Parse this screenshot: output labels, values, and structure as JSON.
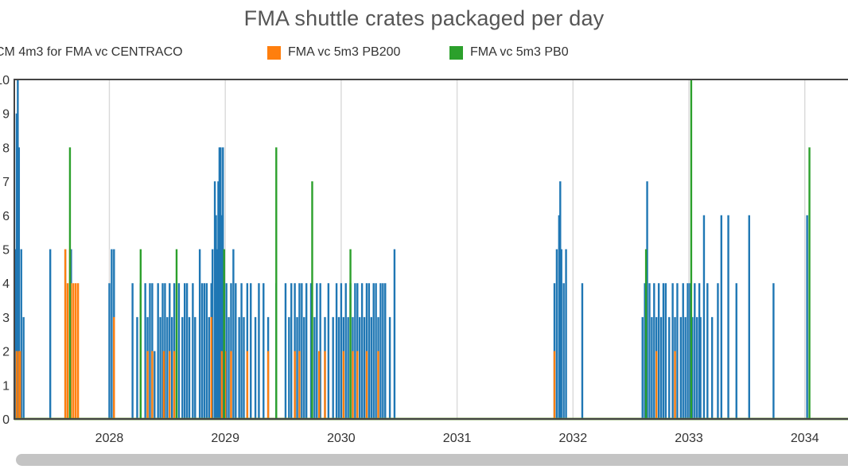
{
  "chart_data": {
    "type": "line",
    "title": "FMA shuttle crates packaged per day",
    "xlabel": "",
    "ylabel": "",
    "xlim": [
      2027.18,
      2034.4
    ],
    "ylim": [
      0,
      10
    ],
    "x_ticks": [
      "2028",
      "2029",
      "2030",
      "2031",
      "2032",
      "2033",
      "2034"
    ],
    "x_tick_values": [
      2028,
      2029,
      2030,
      2031,
      2032,
      2033,
      2034
    ],
    "y_ticks": [
      "0",
      "1",
      "2",
      "3",
      "4",
      "5",
      "6",
      "7",
      "8",
      "9",
      "10"
    ],
    "y_tick_values": [
      0,
      1,
      2,
      3,
      4,
      5,
      6,
      7,
      8,
      9,
      10
    ],
    "grid": true,
    "legend_position": "top",
    "legend": [
      {
        "label": "CM 4m3 for FMA vc CENTRACO",
        "color": "#1f77b4"
      },
      {
        "label": "FMA vc 5m3 PB200",
        "color": "#ff7f0e"
      },
      {
        "label": "FMA vc 5m3 PB0",
        "color": "#2ca02c"
      }
    ],
    "series": [
      {
        "name": "CM 4m3 for FMA vc CENTRACO",
        "color": "#1f77b4",
        "baseline": 0,
        "spikes": [
          {
            "x": 2027.19,
            "y": 5
          },
          {
            "x": 2027.2,
            "y": 9
          },
          {
            "x": 2027.21,
            "y": 10
          },
          {
            "x": 2027.22,
            "y": 8
          },
          {
            "x": 2027.24,
            "y": 5
          },
          {
            "x": 2027.26,
            "y": 3
          },
          {
            "x": 2027.49,
            "y": 5
          },
          {
            "x": 2027.62,
            "y": 5
          },
          {
            "x": 2027.67,
            "y": 5
          },
          {
            "x": 2028.0,
            "y": 4
          },
          {
            "x": 2028.02,
            "y": 5
          },
          {
            "x": 2028.04,
            "y": 5
          },
          {
            "x": 2028.2,
            "y": 4
          },
          {
            "x": 2028.24,
            "y": 3
          },
          {
            "x": 2028.27,
            "y": 4
          },
          {
            "x": 2028.31,
            "y": 4
          },
          {
            "x": 2028.33,
            "y": 3
          },
          {
            "x": 2028.35,
            "y": 4
          },
          {
            "x": 2028.37,
            "y": 4
          },
          {
            "x": 2028.39,
            "y": 2
          },
          {
            "x": 2028.42,
            "y": 4
          },
          {
            "x": 2028.44,
            "y": 3
          },
          {
            "x": 2028.46,
            "y": 4
          },
          {
            "x": 2028.48,
            "y": 4
          },
          {
            "x": 2028.5,
            "y": 3
          },
          {
            "x": 2028.52,
            "y": 4
          },
          {
            "x": 2028.54,
            "y": 3
          },
          {
            "x": 2028.56,
            "y": 4
          },
          {
            "x": 2028.6,
            "y": 4
          },
          {
            "x": 2028.63,
            "y": 3
          },
          {
            "x": 2028.65,
            "y": 4
          },
          {
            "x": 2028.67,
            "y": 4
          },
          {
            "x": 2028.69,
            "y": 3
          },
          {
            "x": 2028.72,
            "y": 4
          },
          {
            "x": 2028.74,
            "y": 3
          },
          {
            "x": 2028.78,
            "y": 5
          },
          {
            "x": 2028.8,
            "y": 4
          },
          {
            "x": 2028.82,
            "y": 4
          },
          {
            "x": 2028.84,
            "y": 4
          },
          {
            "x": 2028.86,
            "y": 3
          },
          {
            "x": 2028.88,
            "y": 4
          },
          {
            "x": 2028.89,
            "y": 5
          },
          {
            "x": 2028.91,
            "y": 7
          },
          {
            "x": 2028.92,
            "y": 6
          },
          {
            "x": 2028.93,
            "y": 5
          },
          {
            "x": 2028.94,
            "y": 7
          },
          {
            "x": 2028.95,
            "y": 8
          },
          {
            "x": 2028.96,
            "y": 8
          },
          {
            "x": 2028.97,
            "y": 6
          },
          {
            "x": 2028.98,
            "y": 8
          },
          {
            "x": 2028.99,
            "y": 5
          },
          {
            "x": 2029.01,
            "y": 4
          },
          {
            "x": 2029.03,
            "y": 3
          },
          {
            "x": 2029.05,
            "y": 4
          },
          {
            "x": 2029.07,
            "y": 5
          },
          {
            "x": 2029.09,
            "y": 4
          },
          {
            "x": 2029.12,
            "y": 3
          },
          {
            "x": 2029.14,
            "y": 4
          },
          {
            "x": 2029.16,
            "y": 3
          },
          {
            "x": 2029.19,
            "y": 4
          },
          {
            "x": 2029.22,
            "y": 4
          },
          {
            "x": 2029.26,
            "y": 3
          },
          {
            "x": 2029.29,
            "y": 4
          },
          {
            "x": 2029.33,
            "y": 4
          },
          {
            "x": 2029.37,
            "y": 3
          },
          {
            "x": 2029.44,
            "y": 4
          },
          {
            "x": 2029.52,
            "y": 4
          },
          {
            "x": 2029.55,
            "y": 3
          },
          {
            "x": 2029.57,
            "y": 4
          },
          {
            "x": 2029.6,
            "y": 4
          },
          {
            "x": 2029.62,
            "y": 3
          },
          {
            "x": 2029.64,
            "y": 4
          },
          {
            "x": 2029.66,
            "y": 4
          },
          {
            "x": 2029.68,
            "y": 3
          },
          {
            "x": 2029.7,
            "y": 4
          },
          {
            "x": 2029.74,
            "y": 4
          },
          {
            "x": 2029.77,
            "y": 3
          },
          {
            "x": 2029.79,
            "y": 4
          },
          {
            "x": 2029.82,
            "y": 4
          },
          {
            "x": 2029.86,
            "y": 3
          },
          {
            "x": 2029.89,
            "y": 4
          },
          {
            "x": 2029.93,
            "y": 3
          },
          {
            "x": 2029.96,
            "y": 4
          },
          {
            "x": 2029.98,
            "y": 3
          },
          {
            "x": 2030.0,
            "y": 4
          },
          {
            "x": 2030.02,
            "y": 3
          },
          {
            "x": 2030.04,
            "y": 4
          },
          {
            "x": 2030.06,
            "y": 3
          },
          {
            "x": 2030.08,
            "y": 4
          },
          {
            "x": 2030.1,
            "y": 3
          },
          {
            "x": 2030.12,
            "y": 4
          },
          {
            "x": 2030.14,
            "y": 4
          },
          {
            "x": 2030.16,
            "y": 3
          },
          {
            "x": 2030.18,
            "y": 4
          },
          {
            "x": 2030.2,
            "y": 3
          },
          {
            "x": 2030.22,
            "y": 4
          },
          {
            "x": 2030.24,
            "y": 4
          },
          {
            "x": 2030.26,
            "y": 3
          },
          {
            "x": 2030.28,
            "y": 4
          },
          {
            "x": 2030.3,
            "y": 4
          },
          {
            "x": 2030.32,
            "y": 3
          },
          {
            "x": 2030.34,
            "y": 4
          },
          {
            "x": 2030.36,
            "y": 4
          },
          {
            "x": 2030.38,
            "y": 4
          },
          {
            "x": 2030.42,
            "y": 3
          },
          {
            "x": 2030.46,
            "y": 5
          },
          {
            "x": 2031.84,
            "y": 4
          },
          {
            "x": 2031.86,
            "y": 5
          },
          {
            "x": 2031.88,
            "y": 6
          },
          {
            "x": 2031.89,
            "y": 7
          },
          {
            "x": 2031.9,
            "y": 5
          },
          {
            "x": 2031.92,
            "y": 4
          },
          {
            "x": 2031.94,
            "y": 5
          },
          {
            "x": 2032.08,
            "y": 4
          },
          {
            "x": 2032.6,
            "y": 3
          },
          {
            "x": 2032.62,
            "y": 4
          },
          {
            "x": 2032.64,
            "y": 7
          },
          {
            "x": 2032.66,
            "y": 4
          },
          {
            "x": 2032.68,
            "y": 3
          },
          {
            "x": 2032.7,
            "y": 4
          },
          {
            "x": 2032.72,
            "y": 3
          },
          {
            "x": 2032.74,
            "y": 4
          },
          {
            "x": 2032.76,
            "y": 3
          },
          {
            "x": 2032.78,
            "y": 4
          },
          {
            "x": 2032.8,
            "y": 4
          },
          {
            "x": 2032.83,
            "y": 3
          },
          {
            "x": 2032.86,
            "y": 4
          },
          {
            "x": 2032.88,
            "y": 3
          },
          {
            "x": 2032.9,
            "y": 4
          },
          {
            "x": 2032.93,
            "y": 3
          },
          {
            "x": 2032.95,
            "y": 4
          },
          {
            "x": 2032.97,
            "y": 3
          },
          {
            "x": 2032.99,
            "y": 4
          },
          {
            "x": 2033.01,
            "y": 4
          },
          {
            "x": 2033.03,
            "y": 3
          },
          {
            "x": 2033.05,
            "y": 4
          },
          {
            "x": 2033.07,
            "y": 3
          },
          {
            "x": 2033.09,
            "y": 4
          },
          {
            "x": 2033.1,
            "y": 3
          },
          {
            "x": 2033.13,
            "y": 6
          },
          {
            "x": 2033.16,
            "y": 4
          },
          {
            "x": 2033.2,
            "y": 3
          },
          {
            "x": 2033.25,
            "y": 4
          },
          {
            "x": 2033.28,
            "y": 6
          },
          {
            "x": 2033.34,
            "y": 6
          },
          {
            "x": 2033.41,
            "y": 4
          },
          {
            "x": 2033.52,
            "y": 6
          },
          {
            "x": 2033.73,
            "y": 4
          },
          {
            "x": 2034.02,
            "y": 6
          }
        ]
      },
      {
        "name": "FMA vc 5m3 PB200",
        "color": "#ff7f0e",
        "baseline": 0,
        "spikes": [
          {
            "x": 2027.2,
            "y": 2
          },
          {
            "x": 2027.22,
            "y": 2
          },
          {
            "x": 2027.23,
            "y": 2
          },
          {
            "x": 2027.62,
            "y": 5
          },
          {
            "x": 2027.64,
            "y": 4
          },
          {
            "x": 2027.66,
            "y": 5
          },
          {
            "x": 2027.67,
            "y": 4
          },
          {
            "x": 2027.69,
            "y": 4
          },
          {
            "x": 2027.71,
            "y": 4
          },
          {
            "x": 2027.73,
            "y": 4
          },
          {
            "x": 2028.04,
            "y": 3
          },
          {
            "x": 2028.33,
            "y": 2
          },
          {
            "x": 2028.37,
            "y": 2
          },
          {
            "x": 2028.47,
            "y": 2
          },
          {
            "x": 2028.52,
            "y": 2
          },
          {
            "x": 2028.56,
            "y": 2
          },
          {
            "x": 2028.88,
            "y": 3
          },
          {
            "x": 2028.97,
            "y": 2
          },
          {
            "x": 2029.0,
            "y": 2
          },
          {
            "x": 2029.05,
            "y": 2
          },
          {
            "x": 2029.19,
            "y": 2
          },
          {
            "x": 2029.37,
            "y": 2
          },
          {
            "x": 2029.6,
            "y": 2
          },
          {
            "x": 2029.64,
            "y": 2
          },
          {
            "x": 2029.81,
            "y": 2
          },
          {
            "x": 2029.86,
            "y": 2
          },
          {
            "x": 2030.02,
            "y": 2
          },
          {
            "x": 2030.1,
            "y": 2
          },
          {
            "x": 2030.14,
            "y": 2
          },
          {
            "x": 2030.22,
            "y": 2
          },
          {
            "x": 2030.32,
            "y": 2
          },
          {
            "x": 2031.84,
            "y": 2
          },
          {
            "x": 2032.72,
            "y": 2
          },
          {
            "x": 2032.88,
            "y": 2
          }
        ]
      },
      {
        "name": "FMA vc 5m3 PB0",
        "color": "#2ca02c",
        "baseline": 0,
        "spikes": [
          {
            "x": 2027.66,
            "y": 8
          },
          {
            "x": 2028.27,
            "y": 5
          },
          {
            "x": 2028.58,
            "y": 5
          },
          {
            "x": 2028.99,
            "y": 5
          },
          {
            "x": 2029.44,
            "y": 8
          },
          {
            "x": 2029.75,
            "y": 7
          },
          {
            "x": 2030.08,
            "y": 5
          },
          {
            "x": 2032.63,
            "y": 5
          },
          {
            "x": 2033.02,
            "y": 10
          },
          {
            "x": 2034.04,
            "y": 8
          }
        ]
      }
    ]
  }
}
